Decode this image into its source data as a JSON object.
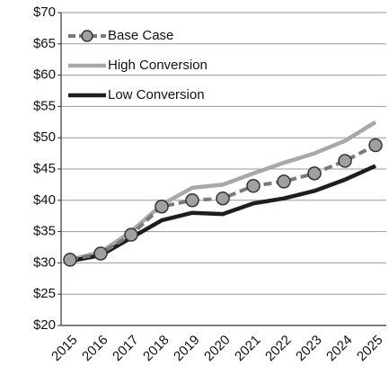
{
  "chart_data": {
    "type": "line",
    "categories": [
      "2015",
      "2016",
      "2017",
      "2018",
      "2019",
      "2020",
      "2021",
      "2022",
      "2023",
      "2024",
      "2025"
    ],
    "series": [
      {
        "name": "Base Case",
        "color": "#7a7a7a",
        "values": [
          30.5,
          31.5,
          34.5,
          39,
          40,
          40.3,
          42.3,
          43,
          44.3,
          46.3,
          48.8
        ]
      },
      {
        "name": "High Conversion",
        "color": "#a8a8a8",
        "values": [
          30.5,
          31.7,
          35,
          39.3,
          42,
          42.5,
          44.3,
          46,
          47.5,
          49.5,
          52.5
        ]
      },
      {
        "name": "Low Conversion",
        "color": "#1e1e1e",
        "values": [
          30.3,
          31.2,
          34,
          36.8,
          38,
          37.8,
          39.5,
          40.3,
          41.5,
          43.3,
          45.5
        ]
      }
    ],
    "ylim": [
      20,
      70
    ],
    "yticks": [
      {
        "value": 20,
        "label": "$20"
      },
      {
        "value": 25,
        "label": "$25"
      },
      {
        "value": 30,
        "label": "$30"
      },
      {
        "value": 35,
        "label": "$35"
      },
      {
        "value": 40,
        "label": "$40"
      },
      {
        "value": 45,
        "label": "$45"
      },
      {
        "value": 50,
        "label": "$50"
      },
      {
        "value": 55,
        "label": "$55"
      },
      {
        "value": 60,
        "label": "$60"
      },
      {
        "value": 65,
        "label": "$65"
      },
      {
        "value": 70,
        "label": "$70"
      }
    ],
    "grid": true,
    "legend": "upper left"
  }
}
